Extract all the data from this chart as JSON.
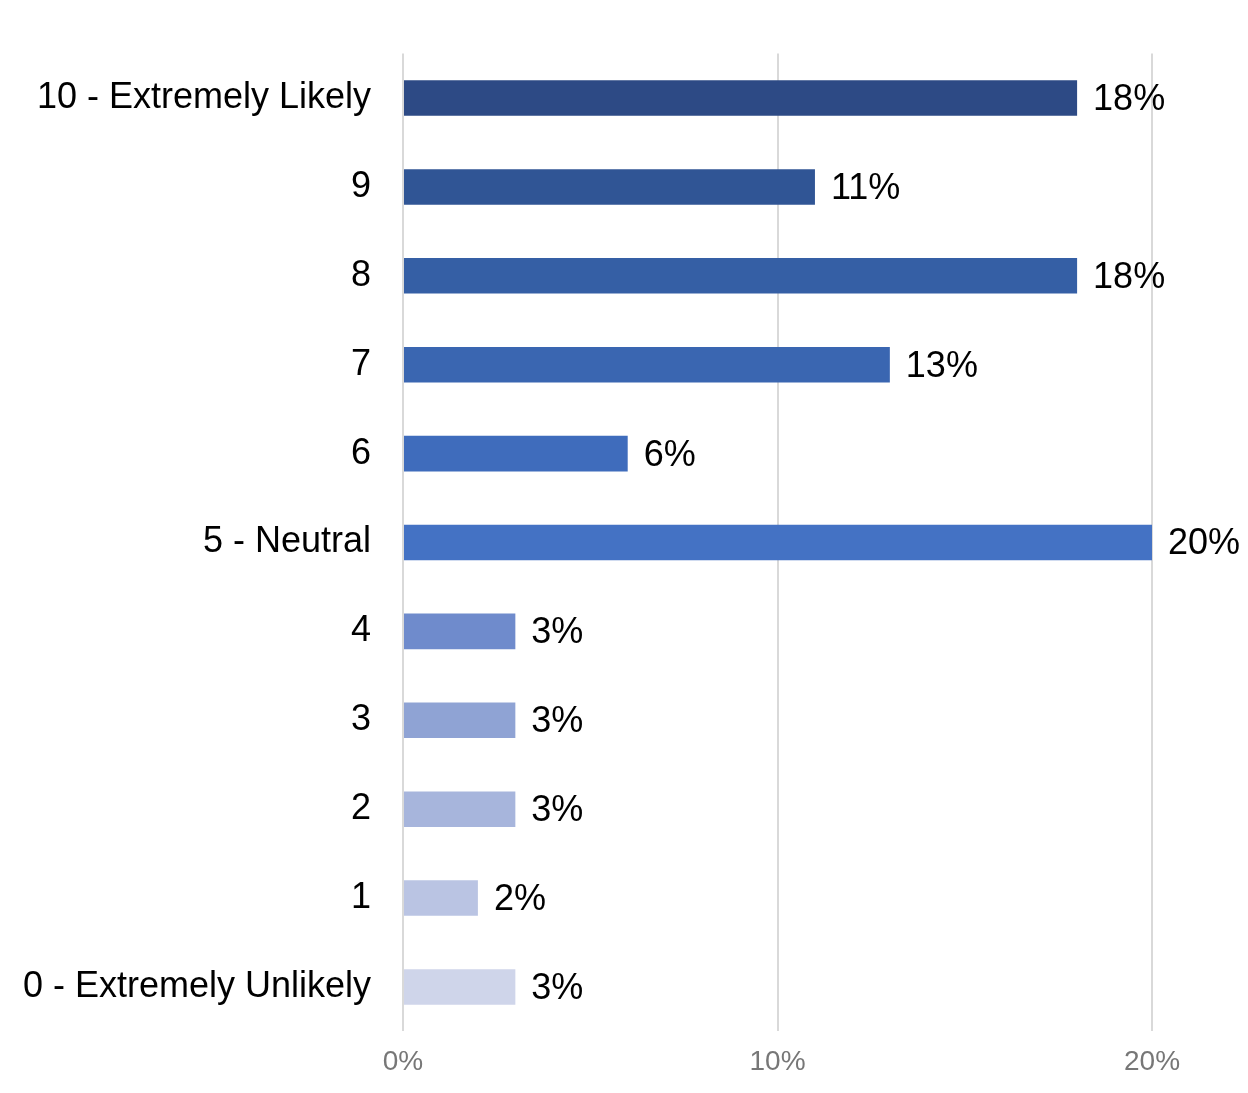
{
  "chart_data": {
    "type": "bar",
    "orientation": "horizontal",
    "categories": [
      "10 - Extremely Likely",
      "9",
      "8",
      "7",
      "6",
      "5 - Neutral",
      "4",
      "3",
      "2",
      "1",
      "0 - Extremely Unlikely"
    ],
    "values": [
      18,
      11,
      18,
      13,
      6,
      20,
      3,
      3,
      3,
      2,
      3
    ],
    "colors": [
      "#2d4a85",
      "#305595",
      "#355fa5",
      "#3a66b1",
      "#3f6cbc",
      "#4472c4",
      "#6f8bcc",
      "#8fa3d4",
      "#a7b5dc",
      "#bac4e3",
      "#cfd5ea"
    ],
    "value_labels": [
      "18%",
      "11%",
      "18%",
      "13%",
      "6%",
      "20%",
      "3%",
      "3%",
      "3%",
      "2%",
      "3%"
    ],
    "xlim": [
      0,
      20
    ],
    "xticks": [
      {
        "value": 0,
        "label": "0%"
      },
      {
        "value": 10,
        "label": "10%"
      },
      {
        "value": 20,
        "label": "20%"
      }
    ],
    "grid": "x",
    "legend": false
  }
}
